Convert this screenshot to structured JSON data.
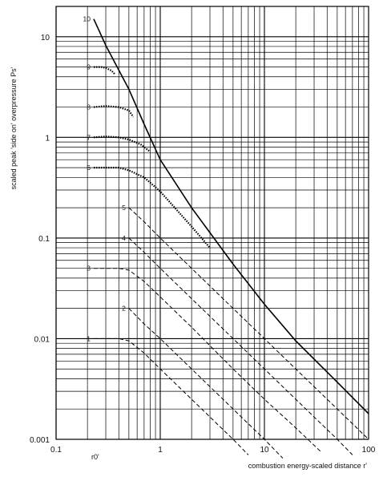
{
  "chart_data": {
    "type": "line",
    "title": "",
    "xlabel": "combustion energy-scaled distance r'",
    "ylabel": "scaled peak 'side on' overpressure Ps'",
    "x_scale": "log",
    "y_scale": "log",
    "xlim": [
      0.1,
      100
    ],
    "ylim": [
      0.001,
      20
    ],
    "grid": true,
    "x_tick_labels": [
      "0.1",
      "1",
      "10",
      "100"
    ],
    "y_tick_labels": [
      "0.001",
      "0.01",
      "0.1",
      "1",
      "10"
    ],
    "annotation": "r0'",
    "series": [
      {
        "name": "10",
        "style": "solid",
        "x": [
          0.23,
          0.3,
          0.5,
          0.7,
          1,
          2,
          5,
          10,
          20,
          50,
          100
        ],
        "y": [
          15,
          8.2,
          3.0,
          1.35,
          0.6,
          0.2,
          0.055,
          0.022,
          0.0095,
          0.0037,
          0.0018
        ]
      },
      {
        "name": "9",
        "style": "dotted",
        "x": [
          0.23,
          0.27,
          0.3,
          0.34,
          0.37
        ],
        "y": [
          5.0,
          5.0,
          4.9,
          4.6,
          4.2
        ]
      },
      {
        "name": "8",
        "style": "dotted",
        "x": [
          0.23,
          0.3,
          0.4,
          0.5,
          0.55
        ],
        "y": [
          2.0,
          2.05,
          2.0,
          1.85,
          1.6
        ]
      },
      {
        "name": "7",
        "style": "dotted",
        "x": [
          0.23,
          0.3,
          0.4,
          0.5,
          0.65,
          0.8
        ],
        "y": [
          1.0,
          1.02,
          1.0,
          0.95,
          0.85,
          0.72
        ]
      },
      {
        "name": "6",
        "style": "dotted",
        "x": [
          0.23,
          0.3,
          0.4,
          0.5,
          0.7,
          1,
          2,
          3
        ],
        "y": [
          0.5,
          0.5,
          0.5,
          0.47,
          0.4,
          0.29,
          0.13,
          0.08
        ]
      },
      {
        "name": "5",
        "style": "dashed",
        "x": [
          0.5,
          0.7,
          1,
          2,
          5,
          10,
          20,
          50,
          100
        ],
        "y": [
          0.2,
          0.145,
          0.1,
          0.05,
          0.02,
          0.01,
          0.005,
          0.002,
          0.001
        ]
      },
      {
        "name": "4",
        "style": "dashed",
        "x": [
          0.5,
          0.7,
          1,
          2,
          5,
          10,
          20,
          50,
          70
        ],
        "y": [
          0.1,
          0.072,
          0.05,
          0.025,
          0.01,
          0.005,
          0.0025,
          0.001,
          0.0007
        ]
      },
      {
        "name": "3",
        "style": "dashed",
        "x": [
          0.23,
          0.4,
          0.5,
          0.7,
          1,
          2,
          5,
          10,
          20,
          35
        ],
        "y": [
          0.05,
          0.05,
          0.048,
          0.037,
          0.026,
          0.013,
          0.005,
          0.0025,
          0.0013,
          0.00075
        ]
      },
      {
        "name": "2",
        "style": "dashed",
        "x": [
          0.5,
          0.7,
          1,
          2,
          5,
          10,
          15
        ],
        "y": [
          0.02,
          0.014,
          0.01,
          0.005,
          0.002,
          0.001,
          0.00065
        ]
      },
      {
        "name": "1",
        "style": "dashed",
        "x": [
          0.23,
          0.4,
          0.5,
          0.7,
          1,
          2,
          5,
          7
        ],
        "y": [
          0.01,
          0.01,
          0.0095,
          0.0072,
          0.005,
          0.0025,
          0.001,
          0.0007
        ]
      }
    ]
  }
}
